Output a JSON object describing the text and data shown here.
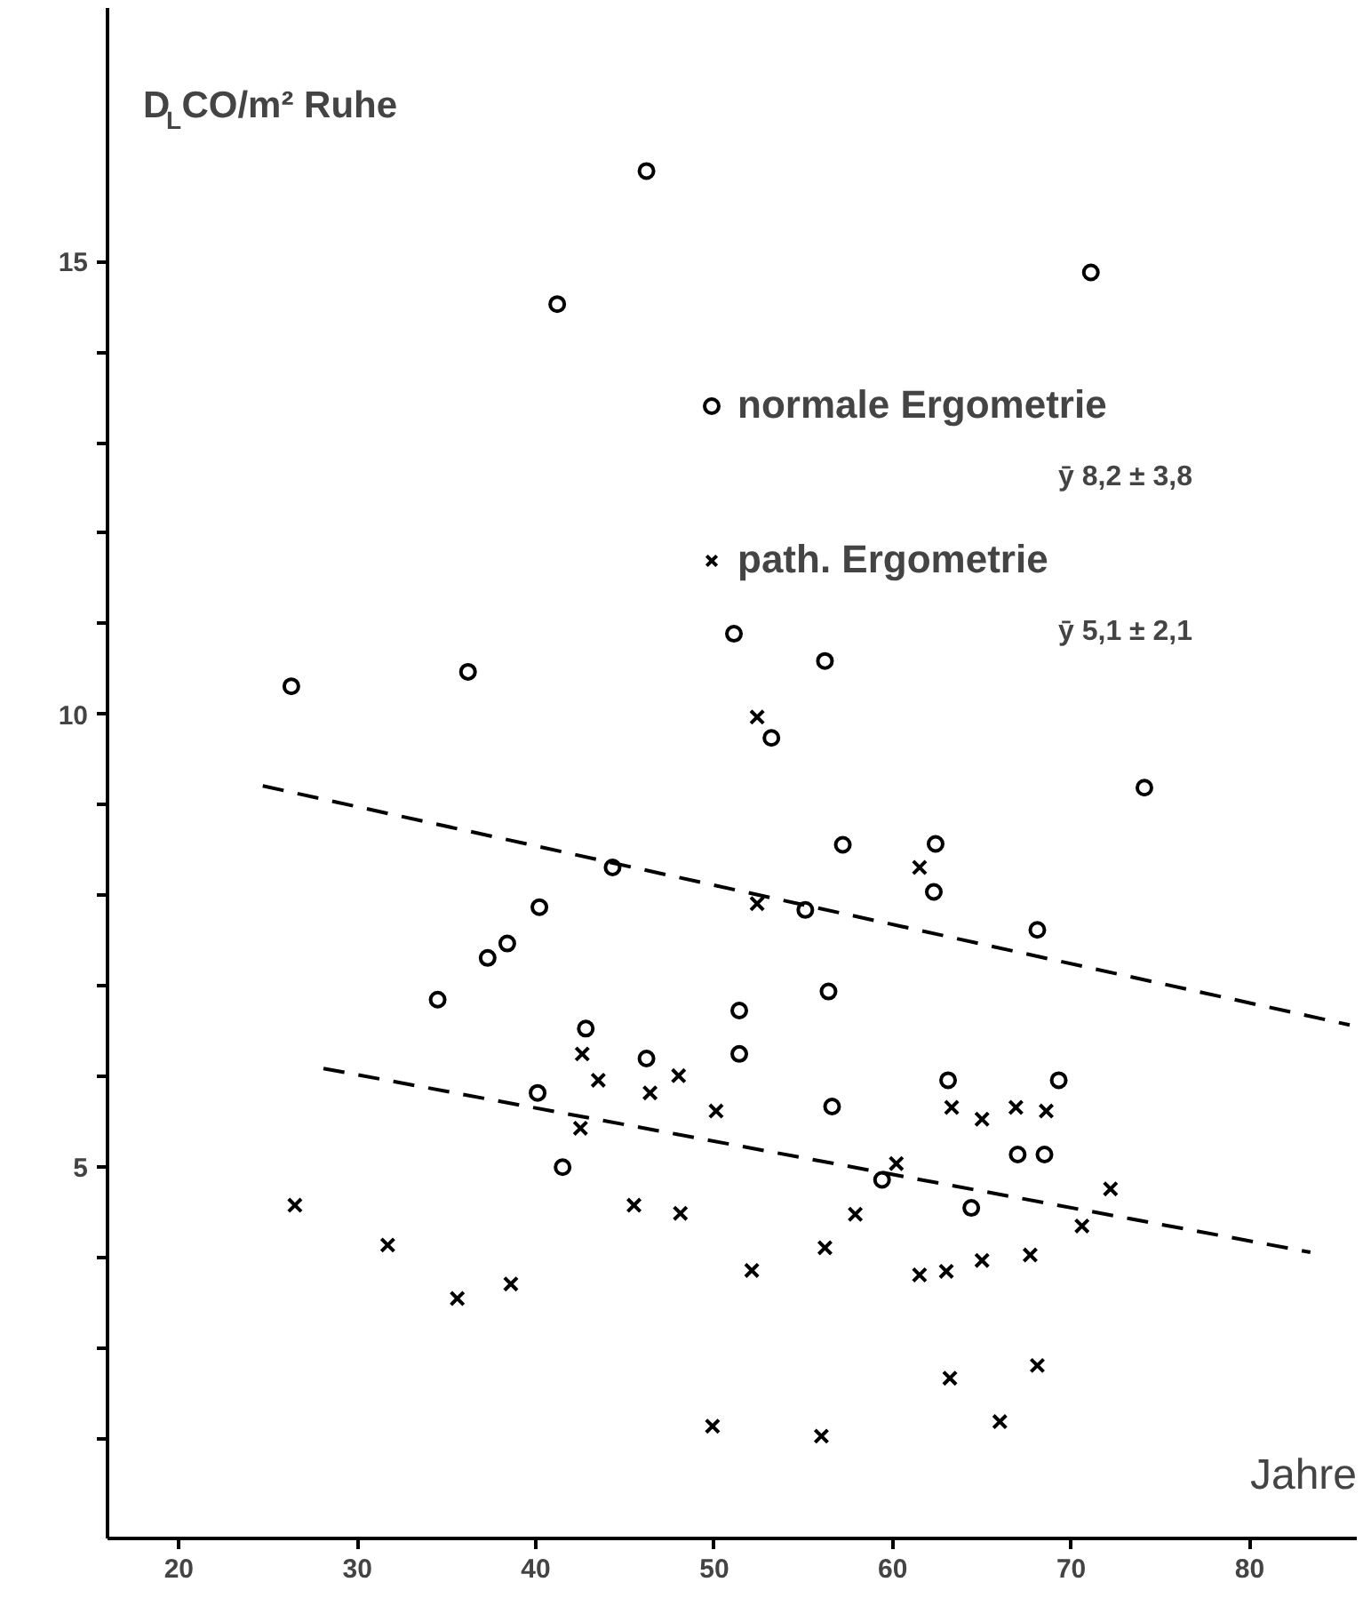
{
  "chart_data": {
    "type": "scatter",
    "ylabel": "D$_{L}$CO/m² Ruhe",
    "xlabel": "Jahre",
    "xlim": [
      16,
      86
    ],
    "ylim": [
      0.9,
      17.8
    ],
    "xticks": [
      20,
      30,
      40,
      50,
      60,
      70,
      80
    ],
    "yticks": [
      {
        "value": 2,
        "label": null
      },
      {
        "value": 3,
        "label": null
      },
      {
        "value": 4,
        "label": null
      },
      5,
      {
        "value": 6,
        "label": null
      },
      {
        "value": 7,
        "label": null
      },
      {
        "value": 8,
        "label": null
      },
      {
        "value": 9,
        "label": null
      },
      10,
      {
        "value": 11,
        "label": null
      },
      {
        "value": 12,
        "label": null
      },
      {
        "value": 13,
        "label": null
      },
      {
        "value": 14,
        "label": null
      },
      15
    ],
    "grid": false,
    "legend": "top right",
    "annotations": [
      "ȳ   8,2 ± 3,8",
      "ȳ   5,1 ± 2,1"
    ],
    "series": [
      {
        "name": "normale Ergometrie",
        "marker": "circle",
        "color": "#000000",
        "x": [
          46.2,
          41.2,
          71.1,
          26.3,
          36.2,
          51.1,
          56.2,
          53.2,
          74.1,
          57.2,
          62.4,
          44.3,
          40.2,
          38.4,
          37.3,
          34.5,
          42.8,
          46.2,
          40.1,
          41.5,
          62.3,
          55.1,
          68.1,
          56.4,
          51.4,
          51.4,
          63.1,
          69.3,
          56.6,
          67.0,
          68.5,
          59.4,
          64.4
        ],
        "values": [
          16.0,
          14.53,
          14.88,
          10.31,
          10.47,
          10.89,
          10.59,
          9.74,
          9.19,
          8.56,
          8.57,
          8.31,
          7.87,
          7.47,
          7.31,
          6.85,
          6.53,
          6.2,
          5.82,
          5.0,
          8.04,
          7.84,
          7.62,
          6.94,
          6.73,
          6.25,
          5.96,
          5.96,
          5.67,
          5.14,
          5.14,
          4.86,
          4.55
        ]
      },
      {
        "name": "path. Ergometrie",
        "marker": "cross",
        "color": "#000000",
        "x": [
          52.4,
          26.5,
          31.7,
          35.6,
          38.6,
          42.6,
          43.5,
          46.4,
          48.0,
          50.1,
          42.5,
          45.5,
          48.1,
          49.9,
          61.5,
          52.4,
          63.3,
          65.0,
          66.9,
          68.6,
          60.2,
          72.2,
          70.6,
          57.9,
          56.2,
          52.1,
          61.5,
          63.0,
          65.0,
          67.7,
          63.2,
          68.1,
          66.0,
          56.0
        ],
        "values": [
          9.97,
          4.58,
          4.14,
          3.55,
          3.71,
          6.25,
          5.96,
          5.82,
          6.01,
          5.62,
          5.43,
          4.58,
          4.49,
          2.14,
          8.31,
          7.91,
          5.66,
          5.53,
          5.66,
          5.62,
          5.04,
          4.76,
          4.35,
          4.48,
          4.11,
          3.86,
          3.81,
          3.85,
          3.97,
          4.03,
          2.67,
          2.81,
          2.19,
          2.03
        ]
      },
      {
        "type": "line",
        "line_style": "dashed",
        "color": "#000000",
        "x": [
          24.7,
          85.6
        ],
        "values": [
          9.21,
          6.57
        ]
      },
      {
        "type": "line",
        "line_style": "dashed",
        "color": "#000000",
        "x": [
          28.1,
          83.4
        ],
        "values": [
          6.09,
          4.06
        ]
      }
    ]
  }
}
